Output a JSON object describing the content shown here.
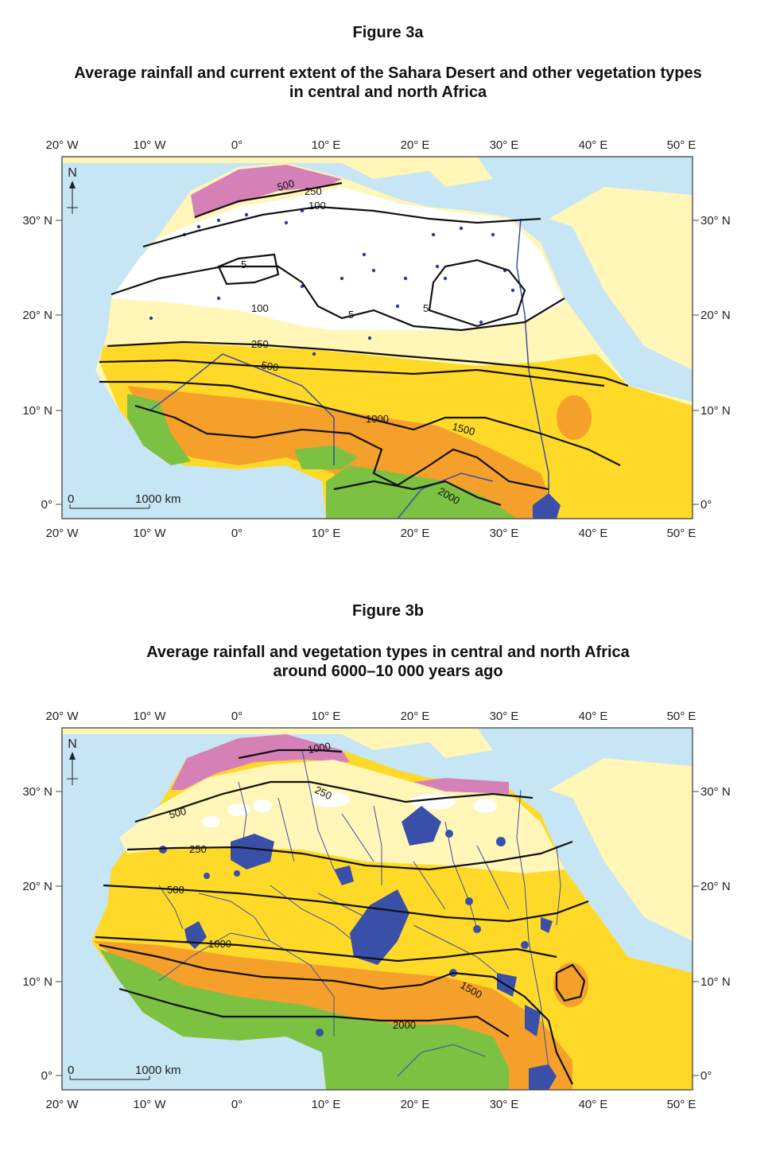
{
  "figures": [
    {
      "label": "Figure 3a",
      "title_line1": "Average rainfall and current extent of the Sahara Desert and other vegetation types",
      "title_line2": "in central and north Africa",
      "scale_zero": "0",
      "scale_label": "1000 km",
      "north": "N",
      "contours": [
        "500",
        "250",
        "100",
        "5",
        "100",
        "5",
        "5",
        "250",
        "500",
        "1000",
        "1500",
        "2000"
      ]
    },
    {
      "label": "Figure 3b",
      "title_line1": "Average rainfall and vegetation types in central and north Africa",
      "title_line2": "around 6000–10 000 years ago",
      "scale_zero": "0",
      "scale_label": "1000 km",
      "north": "N",
      "contours": [
        "1000",
        "250",
        "500",
        "250",
        "500",
        "1000",
        "1500",
        "2000"
      ]
    }
  ],
  "axes": {
    "longitudes": [
      "20° W",
      "10° W",
      "0°",
      "10° E",
      "20° E",
      "30° E",
      "40° E",
      "50° E"
    ],
    "latitudes_left": [
      "30° N",
      "20° N",
      "10° N",
      "0°"
    ],
    "latitudes_right": [
      "30° N",
      "20° N",
      "10° N",
      "0°"
    ]
  },
  "colors": {
    "sea": "#c6e6f5",
    "desert": "#ffffff",
    "semi_desert": "#fff6b8",
    "grassland": "#ffd928",
    "savanna": "#f5a02a",
    "forest": "#7cc142",
    "mediterranean": "#d680b8",
    "water": "#3a4fa8"
  }
}
